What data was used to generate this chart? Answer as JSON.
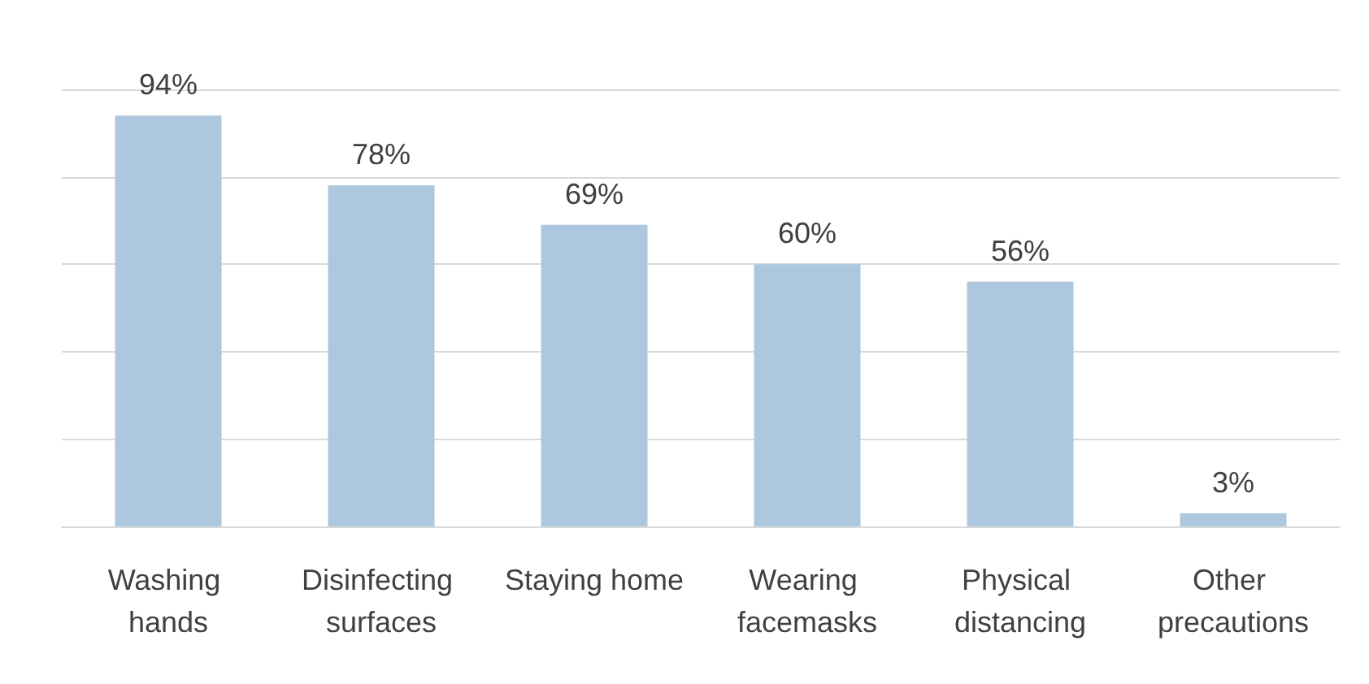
{
  "chart_data": {
    "type": "bar",
    "categories": [
      "Washing hands",
      "Disinfecting surfaces",
      "Staying home",
      "Wearing facemasks",
      "Physical distancing",
      "Other precautions"
    ],
    "values": [
      94,
      78,
      69,
      60,
      56,
      3
    ],
    "value_labels": [
      "94%",
      "78%",
      "69%",
      "60%",
      "56%",
      "3%"
    ],
    "color": "#adc8de",
    "ylim": [
      0,
      100
    ],
    "yticks": [
      {
        "value": 0,
        "label": null
      },
      {
        "value": 20,
        "label": null
      },
      {
        "value": 40,
        "label": null
      },
      {
        "value": 60,
        "label": null
      },
      {
        "value": 80,
        "label": null
      },
      {
        "value": 100,
        "label": null
      }
    ],
    "grid": "y",
    "tick_labels": "x"
  }
}
